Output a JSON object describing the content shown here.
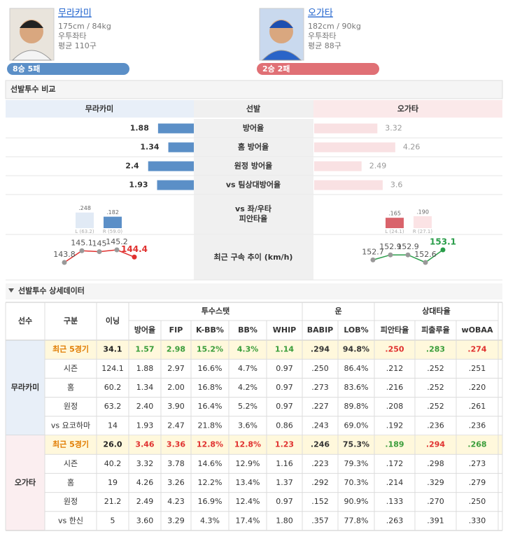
{
  "pitchers": [
    {
      "name": "무라카미",
      "body": "175cm / 84kg",
      "hand": "우투좌타",
      "pitches": "평균 110구",
      "record": "8승 5패",
      "color": "#5b8fc7"
    },
    {
      "name": "오가타",
      "body": "182cm / 90kg",
      "hand": "우투좌타",
      "pitches": "평균 88구",
      "record": "2승 2패",
      "color": "#e07075"
    }
  ],
  "comparison": {
    "title": "선발투수 비교",
    "left": "무라카미",
    "middle": "선발",
    "right": "오가타",
    "left_color": "#5b8fc7",
    "right_color": "#f9e1e3",
    "rows": [
      {
        "label": "방어율",
        "left": 1.88,
        "right": 3.32
      },
      {
        "label": "홈 방어율",
        "left": 1.34,
        "right": 4.26
      },
      {
        "label": "원정 방어율",
        "left": 2.4,
        "right": 2.49
      },
      {
        "label": "vs 팀상대방어율",
        "left": 1.93,
        "right": 3.6
      }
    ],
    "split": {
      "label": [
        "vs 좌/우타",
        "피안타율"
      ],
      "left": [
        {
          "value": 0.248,
          "label": ".248",
          "sample": "L (63.2)",
          "color": "#e1eaf5"
        },
        {
          "value": 0.182,
          "label": ".182",
          "sample": "R (59.0)",
          "color": "#5b8fc7"
        }
      ],
      "right": [
        {
          "value": 0.165,
          "label": ".165",
          "sample": "L (24.1)",
          "color": "#d9636b"
        },
        {
          "value": 0.19,
          "label": ".190",
          "sample": "R (27.1)",
          "color": "#fbe3e5"
        }
      ]
    },
    "velocity": {
      "label": "최근 구속 추이 (km/h)",
      "left": [
        143.8,
        145.1,
        145,
        145.2,
        144.4
      ],
      "left_color": "#e0312f",
      "right": [
        152.7,
        152.9,
        152.9,
        152.6,
        153.1
      ],
      "right_color": "#2a9d4a"
    }
  },
  "detail": {
    "title": "선발투수 상세데이터",
    "player": "선수",
    "split": "구분",
    "ip": "이닝",
    "groups": [
      {
        "label": "투수스탯",
        "columns": [
          "방어율",
          "FIP",
          "K-BB%",
          "BB%",
          "WHIP"
        ]
      },
      {
        "label": "운",
        "columns": [
          "BABIP",
          "LOB%"
        ]
      },
      {
        "label": "상대타율",
        "columns": [
          "피안타율",
          "피출루율",
          "wOBAA"
        ]
      }
    ],
    "players": [
      {
        "name": "무라카미",
        "background": "#e8eff8",
        "rows": [
          {
            "split": "최근 5경기",
            "cells": [
              "34.1",
              "1.57",
              "2.98",
              "15.2%",
              "4.3%",
              "1.14",
              ".294",
              "94.8%",
              ".250",
              ".283",
              ".274"
            ],
            "background": "#fff8dc",
            "label_color": "#e07b00",
            "colors": [
              "#222",
              "#3a9d3a",
              "#3a9d3a",
              "#3a9d3a",
              "#3a9d3a",
              "#3a9d3a",
              "#333",
              "#333",
              "#e0312f",
              "#3a9d3a",
              "#e0312f"
            ]
          },
          {
            "split": "시즌",
            "cells": [
              "124.1",
              "1.88",
              "2.97",
              "16.6%",
              "4.7%",
              "0.97",
              ".250",
              "86.4%",
              ".212",
              ".252",
              ".251"
            ]
          },
          {
            "split": "홈",
            "cells": [
              "60.2",
              "1.34",
              "2.00",
              "16.8%",
              "4.2%",
              "0.97",
              ".273",
              "83.6%",
              ".216",
              ".252",
              ".220"
            ]
          },
          {
            "split": "원정",
            "cells": [
              "63.2",
              "2.40",
              "3.90",
              "16.4%",
              "5.2%",
              "0.97",
              ".227",
              "89.8%",
              ".208",
              ".252",
              ".261"
            ]
          },
          {
            "split": "vs 요코하마",
            "cells": [
              "14",
              "1.93",
              "2.47",
              "21.8%",
              "3.6%",
              "0.86",
              ".243",
              "69.0%",
              ".192",
              ".236",
              ".236"
            ]
          }
        ]
      },
      {
        "name": "오가타",
        "background": "#fbeef0",
        "rows": [
          {
            "split": "최근 5경기",
            "cells": [
              "26.0",
              "3.46",
              "3.36",
              "12.8%",
              "12.8%",
              "1.23",
              ".246",
              "75.3%",
              ".189",
              ".294",
              ".268"
            ],
            "background": "#fff8dc",
            "label_color": "#e07b00",
            "colors": [
              "#222",
              "#e0312f",
              "#e0312f",
              "#e0312f",
              "#e0312f",
              "#e0312f",
              "#333",
              "#333",
              "#3a9d3a",
              "#e0312f",
              "#3a9d3a"
            ]
          },
          {
            "split": "시즌",
            "cells": [
              "40.2",
              "3.32",
              "3.78",
              "14.6%",
              "12.9%",
              "1.16",
              ".223",
              "79.3%",
              ".172",
              ".298",
              ".273"
            ]
          },
          {
            "split": "홈",
            "cells": [
              "19",
              "4.26",
              "3.26",
              "12.2%",
              "13.4%",
              "1.37",
              ".292",
              "70.3%",
              ".214",
              ".329",
              ".279"
            ]
          },
          {
            "split": "원정",
            "cells": [
              "21.2",
              "2.49",
              "4.23",
              "16.9%",
              "12.4%",
              "0.97",
              ".152",
              "90.9%",
              ".133",
              ".270",
              ".250"
            ]
          },
          {
            "split": "vs 한신",
            "cells": [
              "5",
              "3.60",
              "3.29",
              "4.3%",
              "17.4%",
              "1.80",
              ".357",
              "77.8%",
              ".263",
              ".391",
              ".330"
            ]
          }
        ]
      }
    ]
  }
}
